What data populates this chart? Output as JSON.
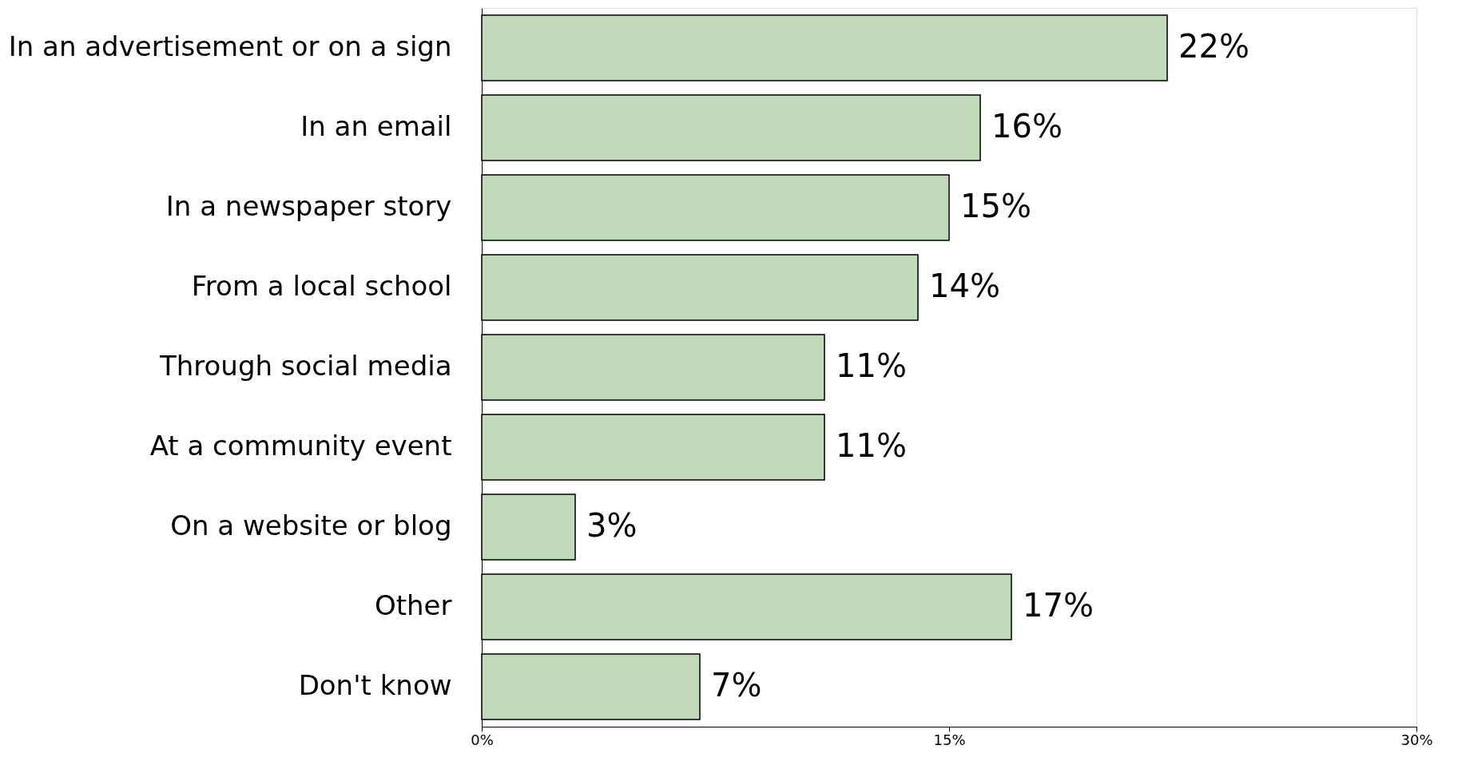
{
  "chart_data": {
    "type": "bar",
    "orientation": "horizontal",
    "categories": [
      "In an advertisement or on a sign",
      "In an email",
      "In a newspaper story",
      "From a local school",
      "Through social media",
      "At a community event",
      "On a website or blog",
      "Other",
      "Don't know"
    ],
    "values": [
      22,
      16,
      15,
      14,
      11,
      11,
      3,
      17,
      7
    ],
    "value_labels": [
      "22%",
      "16%",
      "15%",
      "14%",
      "11%",
      "11%",
      "3%",
      "17%",
      "7%"
    ],
    "color": "#c0d9b9",
    "xlim": [
      0,
      30
    ],
    "xticks": [
      {
        "value": 0,
        "label": "0%"
      },
      {
        "value": 15,
        "label": "15%"
      },
      {
        "value": 30,
        "label": "30%"
      }
    ],
    "grid": false
  }
}
